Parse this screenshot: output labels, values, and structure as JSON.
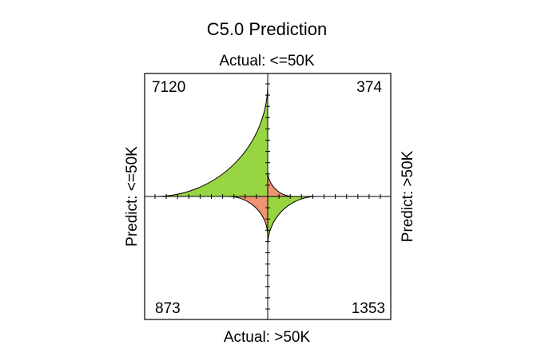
{
  "chart_data": {
    "type": "fourfold",
    "title": "C5.0 Prediction",
    "top_label": "Actual: <=50K",
    "bottom_label": "Actual: >50K",
    "left_label": "Predict: <=50K",
    "right_label": "Predict: >50K",
    "cells": [
      {
        "name": "top-left",
        "predict": "<=50K",
        "actual": "<=50K",
        "value": 7120,
        "color": "#98d543"
      },
      {
        "name": "top-right",
        "predict": ">50K",
        "actual": "<=50K",
        "value": 374,
        "color": "#ef9471"
      },
      {
        "name": "bottom-left",
        "predict": "<=50K",
        "actual": ">50K",
        "value": 873,
        "color": "#ef9471"
      },
      {
        "name": "bottom-right",
        "predict": ">50K",
        "actual": ">50K",
        "value": 1353,
        "color": "#98d543"
      }
    ],
    "ticks": true
  }
}
